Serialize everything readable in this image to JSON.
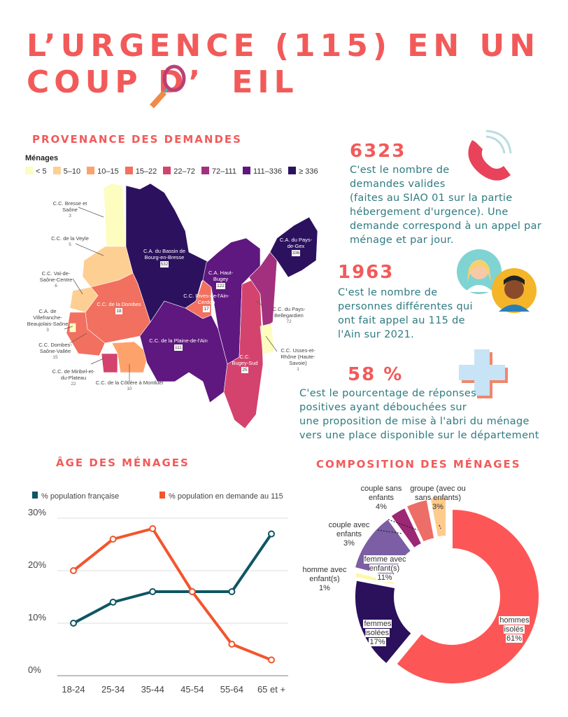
{
  "title": {
    "line1": "L’URGENCE (115) EN UN",
    "line2_a": "COUP D’",
    "line2_b": "EIL"
  },
  "sections": {
    "provenance": "PROVENANCE DES DEMANDES",
    "age": "ÂGE DES MÉNAGES",
    "composition": "COMPOSITION DES MÉNAGES"
  },
  "stats": [
    {
      "value": "6323",
      "text": [
        "C'est le nombre de",
        "demandes valides",
        "(faites au SIAO 01 sur la partie",
        "hébergement d'urgence). Une",
        "demande correspond à un appel par",
        "ménage et par jour."
      ],
      "icon": "phone-icon"
    },
    {
      "value": "1963",
      "text": [
        "C'est le nombre de",
        "personnes différentes qui",
        "ont fait appel au 115 de",
        "l'Ain sur 2021."
      ],
      "icon": "people-icon"
    },
    {
      "value": "58 %",
      "text": [
        "C'est le pourcentage de réponses",
        "positives ayant  débouchées sur",
        "une proposition de mise à l'abri du ménage",
        "vers une place disponible sur le département"
      ],
      "icon": "medical-cross-icon"
    }
  ],
  "colors": {
    "accent": "#f25a5a",
    "teal": "#2e7b80"
  },
  "chart_data": [
    {
      "type": "choropleth-map",
      "title": "Ménages",
      "legend": [
        {
          "label": "< 5",
          "color": "#fcfdbf"
        },
        {
          "label": "5–10",
          "color": "#fecf92"
        },
        {
          "label": "10–15",
          "color": "#fea26b"
        },
        {
          "label": "15–22",
          "color": "#f1705f"
        },
        {
          "label": "22–72",
          "color": "#d3436e"
        },
        {
          "label": "72–111",
          "color": "#a3307e"
        },
        {
          "label": "111–336",
          "color": "#5f187f"
        },
        {
          "label": "≥ 336",
          "color": "#2c115f"
        }
      ],
      "regions": [
        {
          "name": "C.C. Bresse et Saône",
          "value": "3"
        },
        {
          "name": "C.C. de la Veyle",
          "value": "5"
        },
        {
          "name": "C.C. Val-de-Saône-Centre",
          "value": "6"
        },
        {
          "name": "C.A. de Villefranche-Beaujolais-Saône",
          "value": "3"
        },
        {
          "name": "C.C. Dombes-Saône-Vallée",
          "value": "15"
        },
        {
          "name": "C.C. de Miribel-et-du-Plateau",
          "value": "22"
        },
        {
          "name": "C.C. de la Côtière à Montluel",
          "value": "10"
        },
        {
          "name": "C.C. de la Dombes",
          "value": "18"
        },
        {
          "name": "C.A. du Bassin de Bourg-en-Bresse",
          "value": "532"
        },
        {
          "name": "C.C. Rives-de-l'Ain-Cerdon",
          "value": "17"
        },
        {
          "name": "C.C. de la Plaine-de-l'Ain",
          "value": "111"
        },
        {
          "name": "C.A. Haut-Bugey",
          "value": "122"
        },
        {
          "name": "C.C. Bugey-Sud",
          "value": "25"
        },
        {
          "name": "C.C. du Pays-Bellegardien",
          "value": "72"
        },
        {
          "name": "C.A. du Pays-de-Gex",
          "value": "336"
        },
        {
          "name": "C.C. Usses-et-Rhône (Haute-Savoie)",
          "value": "1"
        }
      ]
    },
    {
      "type": "line",
      "categories": [
        "18-24",
        "25-34",
        "35-44",
        "45-54",
        "55-64",
        "65 et +"
      ],
      "series": [
        {
          "name": "% population française",
          "color": "#0f5563",
          "values": [
            10,
            14,
            16,
            16,
            16,
            27
          ]
        },
        {
          "name": "% population en demande au 115",
          "color": "#f2552c",
          "values": [
            20,
            26,
            28,
            16,
            6,
            3
          ]
        }
      ],
      "yticks": [
        "0%",
        "10%",
        "20%",
        "30%"
      ],
      "ylim": [
        0,
        30
      ],
      "grid": true,
      "legend": "top"
    },
    {
      "type": "pie",
      "donut": true,
      "slices": [
        {
          "label": "hommes isolés",
          "value": 61,
          "pct": "61%",
          "color": "#fd5656"
        },
        {
          "label": "femmes isolées",
          "value": 17,
          "pct": "17%",
          "color": "#2b105c"
        },
        {
          "label": "homme avec enfant(s)",
          "value": 1,
          "pct": "1%",
          "color": "#fdf7a8"
        },
        {
          "label": "femme avec enfant(s)",
          "value": 11,
          "pct": "11%",
          "color": "#7b5ea3"
        },
        {
          "label": "couple avec enfants",
          "value": 3,
          "pct": "3%",
          "color": "#9b2775"
        },
        {
          "label": "couple sans enfants",
          "value": 4,
          "pct": "4%",
          "color": "#ec6e67"
        },
        {
          "label": "groupe (avec ou sans enfants)",
          "value": 3,
          "pct": "3%",
          "color": "#fecb8c"
        }
      ]
    }
  ]
}
